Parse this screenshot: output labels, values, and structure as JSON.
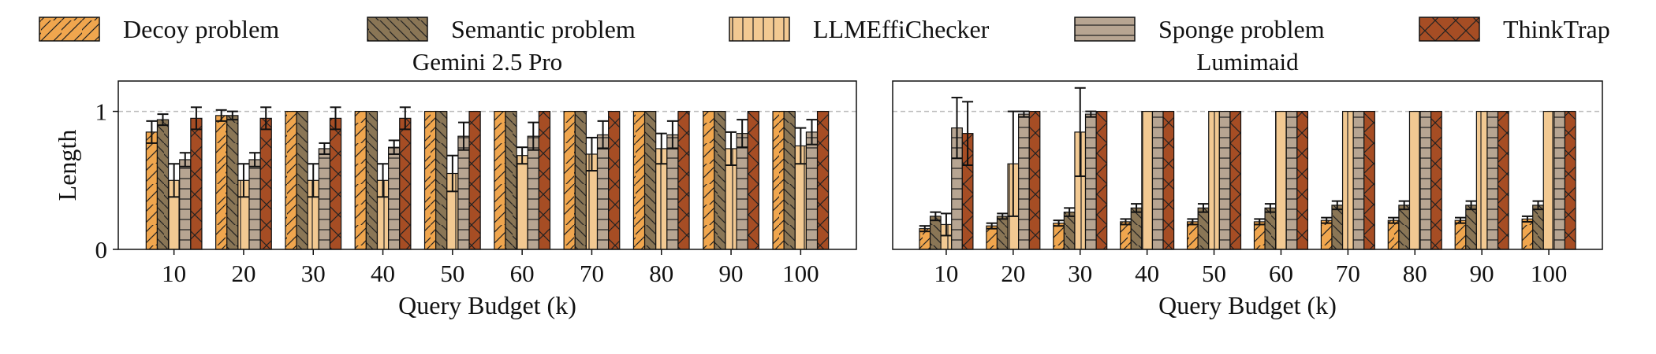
{
  "legend": [
    {
      "name": "Decoy problem",
      "color": "#f0a64e",
      "hatch": "diag"
    },
    {
      "name": "Semantic problem",
      "color": "#8a7656",
      "hatch": "back"
    },
    {
      "name": "LLMEffiChecker",
      "color": "#f2c992",
      "hatch": "vert"
    },
    {
      "name": "Sponge problem",
      "color": "#b7a592",
      "hatch": "horiz"
    },
    {
      "name": "ThinkTrap",
      "color": "#a64d24",
      "hatch": "cross"
    }
  ],
  "chart_data": [
    {
      "type": "bar",
      "title": "Gemini 2.5 Pro",
      "xlabel": "Query Budget (k)",
      "ylabel": "Length",
      "categories": [
        "10",
        "20",
        "30",
        "40",
        "50",
        "60",
        "70",
        "80",
        "90",
        "100"
      ],
      "ylim": [
        0,
        1.22
      ],
      "yticks": [
        "0",
        "1"
      ],
      "reference_line": 1.0,
      "grid": false,
      "series": [
        {
          "name": "Decoy problem",
          "values": [
            0.85,
            0.97,
            1.0,
            1.0,
            1.0,
            1.0,
            1.0,
            1.0,
            1.0,
            1.0
          ],
          "errors": [
            0.08,
            0.04,
            0,
            0,
            0,
            0,
            0,
            0,
            0,
            0
          ]
        },
        {
          "name": "Semantic problem",
          "values": [
            0.94,
            0.97,
            1.0,
            1.0,
            1.0,
            1.0,
            1.0,
            1.0,
            1.0,
            1.0
          ],
          "errors": [
            0.04,
            0.03,
            0,
            0,
            0,
            0,
            0,
            0,
            0,
            0
          ]
        },
        {
          "name": "LLMEffiChecker",
          "values": [
            0.5,
            0.5,
            0.5,
            0.5,
            0.55,
            0.68,
            0.69,
            0.73,
            0.73,
            0.75
          ],
          "errors": [
            0.12,
            0.12,
            0.12,
            0.12,
            0.13,
            0.06,
            0.12,
            0.11,
            0.12,
            0.13
          ]
        },
        {
          "name": "Sponge problem",
          "values": [
            0.65,
            0.65,
            0.73,
            0.74,
            0.82,
            0.82,
            0.83,
            0.83,
            0.84,
            0.85
          ],
          "errors": [
            0.05,
            0.05,
            0.04,
            0.05,
            0.1,
            0.1,
            0.1,
            0.1,
            0.1,
            0.09
          ]
        },
        {
          "name": "ThinkTrap",
          "values": [
            0.95,
            0.95,
            0.95,
            0.95,
            1.0,
            1.0,
            1.0,
            1.0,
            1.0,
            1.0
          ],
          "errors": [
            0.08,
            0.08,
            0.08,
            0.08,
            0,
            0,
            0,
            0,
            0,
            0
          ]
        }
      ]
    },
    {
      "type": "bar",
      "title": "Lumimaid",
      "xlabel": "Query Budget (k)",
      "ylabel": "",
      "categories": [
        "10",
        "20",
        "30",
        "40",
        "50",
        "60",
        "70",
        "80",
        "90",
        "100"
      ],
      "ylim": [
        0,
        1.22
      ],
      "yticks": [],
      "reference_line": 1.0,
      "grid": false,
      "series": [
        {
          "name": "Decoy problem",
          "values": [
            0.15,
            0.17,
            0.19,
            0.2,
            0.2,
            0.2,
            0.21,
            0.21,
            0.21,
            0.22
          ],
          "errors": [
            0.02,
            0.02,
            0.02,
            0.02,
            0.02,
            0.02,
            0.02,
            0.02,
            0.02,
            0.02
          ]
        },
        {
          "name": "Semantic problem",
          "values": [
            0.24,
            0.24,
            0.27,
            0.3,
            0.3,
            0.3,
            0.32,
            0.32,
            0.32,
            0.32
          ],
          "errors": [
            0.03,
            0.02,
            0.03,
            0.03,
            0.03,
            0.03,
            0.03,
            0.03,
            0.03,
            0.03
          ]
        },
        {
          "name": "LLMEffiChecker",
          "values": [
            0.18,
            0.62,
            0.85,
            1.0,
            1.0,
            1.0,
            1.0,
            1.0,
            1.0,
            1.0
          ],
          "errors": [
            0.08,
            0.38,
            0.32,
            0,
            0,
            0,
            0,
            0,
            0,
            0
          ]
        },
        {
          "name": "Sponge problem",
          "values": [
            0.88,
            0.98,
            0.98,
            1.0,
            1.0,
            1.0,
            1.0,
            1.0,
            1.0,
            1.0
          ],
          "errors": [
            0.22,
            0.02,
            0.02,
            0,
            0,
            0,
            0,
            0,
            0,
            0
          ]
        },
        {
          "name": "ThinkTrap",
          "values": [
            0.84,
            1.0,
            1.0,
            1.0,
            1.0,
            1.0,
            1.0,
            1.0,
            1.0,
            1.0
          ],
          "errors": [
            0.23,
            0,
            0,
            0,
            0,
            0,
            0,
            0,
            0,
            0
          ]
        }
      ]
    }
  ]
}
